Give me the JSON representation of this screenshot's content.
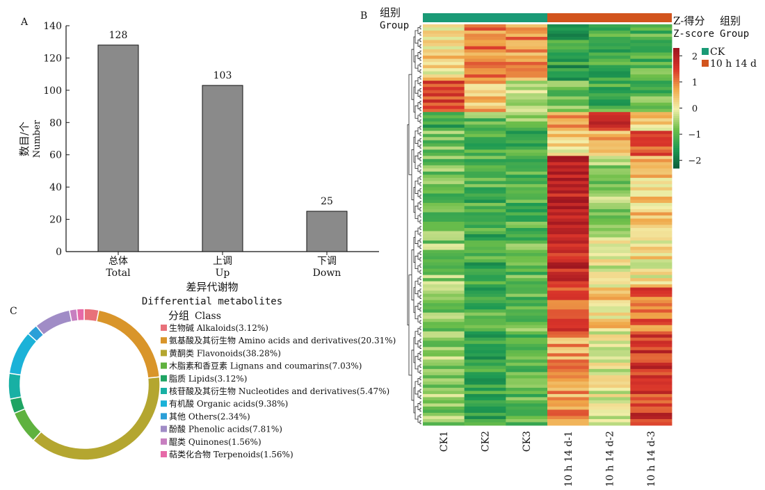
{
  "panels": {
    "a": "A",
    "b": "B",
    "c": "C"
  },
  "chart_data": [
    {
      "type": "bar",
      "categories": [
        {
          "zh": "总体",
          "en": "Total"
        },
        {
          "zh": "上调",
          "en": "Up"
        },
        {
          "zh": "下调",
          "en": "Down"
        }
      ],
      "values": [
        128,
        103,
        25
      ],
      "ylabel": {
        "zh": "数目/个",
        "en": "Number"
      },
      "xlabel": {
        "zh": "差异代谢物",
        "en": "Differential metabolites"
      },
      "ylim": [
        0,
        140
      ],
      "yticks": [
        0,
        20,
        40,
        60,
        80,
        100,
        120,
        140
      ],
      "colors": {
        "bar": "#8a8a8a"
      },
      "grid": false
    },
    {
      "type": "heatmap",
      "columns": [
        "CK1",
        "CK2",
        "CK3",
        "10 h 14 d-1",
        "10 h 14 d-2",
        "10 h 14 d-3"
      ],
      "group_bar": {
        "zh": "组别",
        "en": "Group",
        "groups": [
          {
            "name": "CK",
            "color": "#1a9a76",
            "columns": [
              0,
              1,
              2
            ]
          },
          {
            "name": "10 h 14 d",
            "color": "#d2541d",
            "columns": [
              3,
              4,
              5
            ]
          }
        ]
      },
      "zscore": {
        "zh": "Z-得分",
        "en": "Z-score",
        "ticks": [
          2,
          1,
          0,
          -1,
          -2
        ],
        "range": [
          -2.3,
          2.3
        ],
        "colors": [
          "#0b5a3a",
          "#1e9a53",
          "#6fbf4a",
          "#f3efaa",
          "#f0a84a",
          "#d9342a",
          "#9e1620"
        ]
      },
      "legend_title": {
        "zh": "组别",
        "en": "Group"
      },
      "legend_items": [
        {
          "name": "CK",
          "color": "#1a9a76"
        },
        {
          "name": "10 h 14 d",
          "color": "#d2541d"
        }
      ],
      "n_rows": 128,
      "row_profiles": [
        {
          "rows": 18,
          "base": [
            0.3,
            1.0,
            0.9,
            -1.4,
            -1.2,
            -1.1
          ]
        },
        {
          "rows": 10,
          "base": [
            1.6,
            0.6,
            -0.3,
            -0.8,
            -1.1,
            -0.9
          ]
        },
        {
          "rows": 6,
          "base": [
            -1.2,
            -0.9,
            -0.8,
            0.6,
            1.6,
            0.4
          ]
        },
        {
          "rows": 8,
          "base": [
            -0.8,
            -1.0,
            -1.1,
            0.3,
            0.6,
            1.5
          ]
        },
        {
          "rows": 24,
          "base": [
            -0.8,
            -1.1,
            -1.0,
            2.0,
            -0.6,
            0.4
          ]
        },
        {
          "rows": 18,
          "base": [
            -0.6,
            -1.2,
            -0.9,
            1.8,
            0.0,
            0.2
          ]
        },
        {
          "rows": 14,
          "base": [
            -0.7,
            -1.1,
            -0.9,
            1.3,
            0.3,
            1.2
          ]
        },
        {
          "rows": 30,
          "base": [
            -0.6,
            -1.3,
            -1.0,
            0.8,
            0.0,
            1.6
          ]
        }
      ]
    },
    {
      "type": "pie",
      "legend_title": {
        "zh": "分组",
        "en": "Class"
      },
      "slices": [
        {
          "label": "生物碱 Alkaloids(3.12%)",
          "value": 3.12,
          "color": "#e8717a"
        },
        {
          "label": "氨基酸及其衍生物 Amino acids and derivatives(20.31%)",
          "value": 20.31,
          "color": "#d9952a"
        },
        {
          "label": "黄酮类 Flavonoids(38.28%)",
          "value": 38.28,
          "color": "#b4a630"
        },
        {
          "label": "木脂素和香豆素 Lignans and coumarins(7.03%)",
          "value": 7.03,
          "color": "#5fb23f"
        },
        {
          "label": "脂质 Lipids(3.12%)",
          "value": 3.12,
          "color": "#1fa463"
        },
        {
          "label": "核苷酸及其衍生物 Nucleotides and derivatives(5.47%)",
          "value": 5.47,
          "color": "#18b0a4"
        },
        {
          "label": "有机酸 Organic acids(9.38%)",
          "value": 9.38,
          "color": "#1bb2d8"
        },
        {
          "label": "其他 Others(2.34%)",
          "value": 2.34,
          "color": "#2a9fd8"
        },
        {
          "label": "酚酸 Phenolic acids(7.81%)",
          "value": 7.81,
          "color": "#a08cc6"
        },
        {
          "label": "醌类 Quinones(1.56%)",
          "value": 1.56,
          "color": "#c77fc0"
        },
        {
          "label": "萜类化合物 Terpenoids(1.56%)",
          "value": 1.56,
          "color": "#e66aa8"
        }
      ]
    }
  ]
}
